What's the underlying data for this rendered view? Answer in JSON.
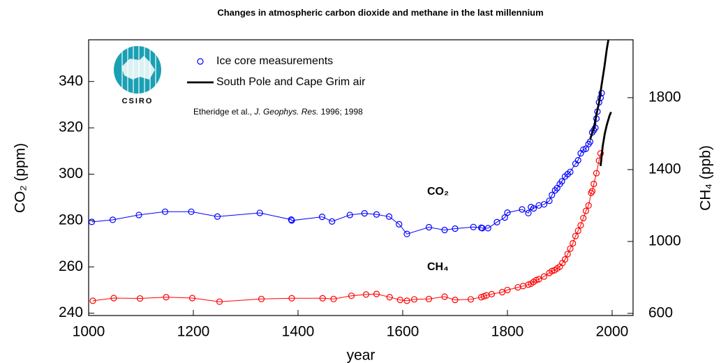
{
  "chart_data": {
    "type": "line",
    "title": "Changes in atmospheric carbon dioxide and methane in the last millennium",
    "x_label": "year",
    "y_label": "CO₂ (ppm)",
    "y2_label": "CH₄ (ppb)",
    "logo_text": "CSIRO",
    "citation": [
      "Etheridge et al., ",
      "J. Geophys. Res.",
      " 1996; 1998"
    ],
    "legend": [
      {
        "name": "Ice core measurements",
        "marker": "circle",
        "color": "#0000ff"
      },
      {
        "name": "South Pole and Cape Grim air",
        "marker": "line",
        "color": "#000000"
      }
    ],
    "xlim": [
      1000,
      2040
    ],
    "xticks": [
      1000,
      1200,
      1400,
      1600,
      1800,
      2000
    ],
    "ylim": [
      239,
      358
    ],
    "yticks": [
      240,
      260,
      280,
      300,
      320,
      340
    ],
    "y2lim": [
      588,
      2122
    ],
    "y2ticks": [
      600,
      1000,
      1400,
      1800
    ],
    "series": [
      {
        "label": "CO₂",
        "color": "#0000ff",
        "marker": "circle",
        "axis": "y",
        "x": [
          1006,
          1046,
          1096,
          1146,
          1196,
          1246,
          1327,
          1387,
          1388,
          1446,
          1465,
          1499,
          1527,
          1550,
          1574,
          1593,
          1608,
          1650,
          1680,
          1700,
          1735,
          1750,
          1752,
          1763,
          1780,
          1795,
          1800,
          1828,
          1840,
          1845,
          1850,
          1860,
          1870,
          1880,
          1885,
          1891,
          1895,
          1900,
          1904,
          1910,
          1915,
          1920,
          1930,
          1935,
          1940,
          1945,
          1950,
          1955,
          1958,
          1962,
          1965,
          1968,
          1970,
          1972,
          1975,
          1978,
          1980
        ],
        "values": [
          279.4,
          280.3,
          282.4,
          283.8,
          283.8,
          281.7,
          283.3,
          280.4,
          280.0,
          281.6,
          279.6,
          282.4,
          283.1,
          282.6,
          281.7,
          278.4,
          274.2,
          277.1,
          275.9,
          276.5,
          277.2,
          276.9,
          276.7,
          276.7,
          279.3,
          281.3,
          283.4,
          284.8,
          283.2,
          285.8,
          285.2,
          286.5,
          287,
          288.5,
          291,
          293,
          294,
          295.7,
          296.9,
          299,
          300,
          301,
          304.5,
          306,
          309,
          310.6,
          311,
          313,
          314,
          318,
          319,
          320,
          324,
          327,
          331,
          333,
          335
        ]
      },
      {
        "label": "CH₄",
        "color": "#ff0000",
        "marker": "circle",
        "axis": "y2",
        "x": [
          1008,
          1048,
          1098,
          1148,
          1198,
          1250,
          1330,
          1388,
          1447,
          1468,
          1502,
          1530,
          1550,
          1575,
          1595,
          1608,
          1622,
          1650,
          1680,
          1700,
          1730,
          1750,
          1755,
          1760,
          1770,
          1790,
          1800,
          1820,
          1830,
          1840,
          1845,
          1850,
          1855,
          1860,
          1870,
          1880,
          1885,
          1890,
          1895,
          1900,
          1905,
          1910,
          1915,
          1920,
          1925,
          1930,
          1935,
          1940,
          1945,
          1950,
          1955,
          1960,
          1962,
          1965,
          1970,
          1975,
          1978
        ],
        "values": [
          670,
          685,
          683,
          690,
          685,
          665,
          680,
          684,
          684,
          680,
          698,
          705,
          708,
          690,
          675,
          670,
          678,
          680,
          693,
          675,
          678,
          690,
          695,
          700,
          707,
          718,
          730,
          745,
          752,
          760,
          765,
          775,
          785,
          790,
          805,
          825,
          835,
          840,
          850,
          860,
          880,
          900,
          930,
          960,
          990,
          1030,
          1060,
          1090,
          1130,
          1170,
          1200,
          1270,
          1280,
          1320,
          1380,
          1450,
          1490
        ]
      },
      {
        "color": "#000000",
        "marker": "none",
        "axis": "y",
        "x": [
          1958,
          1965,
          1970,
          1975,
          1980,
          1985,
          1990,
          1996
        ],
        "values": [
          315,
          320,
          325.7,
          331,
          338.7,
          346,
          354.2,
          362
        ]
      },
      {
        "color": "#000000",
        "marker": "none",
        "axis": "y2",
        "x": [
          1978,
          1982,
          1986,
          1990,
          1995,
          1998
        ],
        "values": [
          1420,
          1530,
          1600,
          1650,
          1700,
          1720
        ]
      }
    ]
  }
}
